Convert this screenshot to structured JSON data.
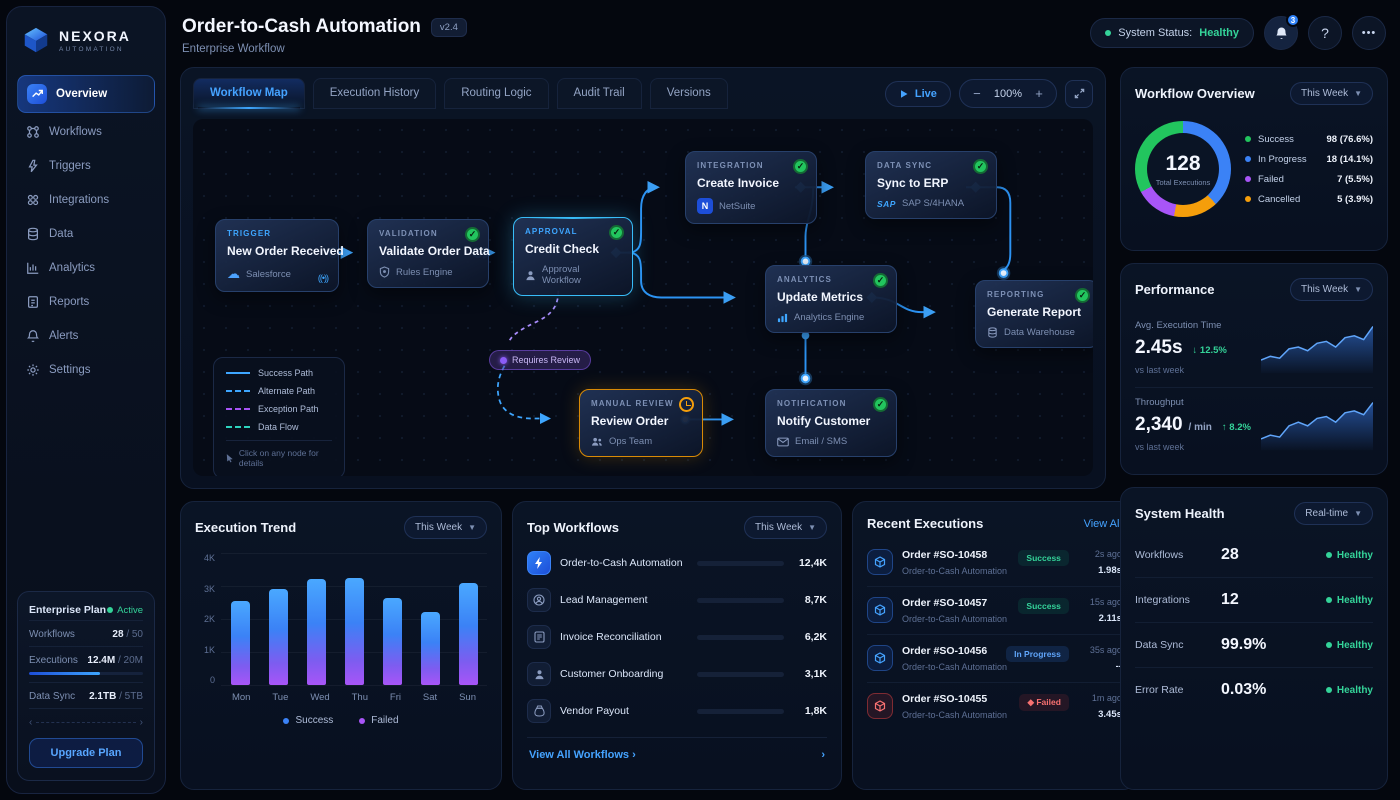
{
  "app": {
    "brand": "NEXORA",
    "brand_sub": "AUTOMATION"
  },
  "sidebar": {
    "items": [
      {
        "label": "Overview"
      },
      {
        "label": "Workflows"
      },
      {
        "label": "Triggers"
      },
      {
        "label": "Integrations"
      },
      {
        "label": "Data"
      },
      {
        "label": "Analytics"
      },
      {
        "label": "Reports"
      },
      {
        "label": "Alerts"
      },
      {
        "label": "Settings"
      }
    ],
    "plan": {
      "name": "Enterprise Plan",
      "status": "Active",
      "rows": [
        {
          "label": "Workflows",
          "value": "28",
          "max": "/ 50"
        },
        {
          "label": "Executions",
          "value": "12.4M",
          "max": "/ 20M"
        },
        {
          "label": "Data Sync",
          "value": "2.1TB",
          "max": "/ 5TB"
        }
      ],
      "button": "Upgrade Plan"
    }
  },
  "header": {
    "title": "Order-to-Cash Automation",
    "version": "v2.4",
    "subtitle": "Enterprise Workflow",
    "system_status_label": "System Status:",
    "system_status_value": "Healthy",
    "notifications_count": "3",
    "help_label": "?",
    "more_label": "•••"
  },
  "workflow_panel": {
    "tabs": [
      {
        "label": "Workflow Map"
      },
      {
        "label": "Execution History"
      },
      {
        "label": "Routing Logic"
      },
      {
        "label": "Audit Trail"
      },
      {
        "label": "Versions"
      }
    ],
    "live_label": "Live",
    "zoom_level": "100%",
    "zoom_out": "−",
    "zoom_in": "+"
  },
  "canvas": {
    "nodes": [
      {
        "type": "TRIGGER",
        "title": "New Order Received",
        "sub": "Salesforce"
      },
      {
        "type": "VALIDATION",
        "title": "Validate Order Data",
        "sub": "Rules Engine"
      },
      {
        "type": "APPROVAL",
        "title": "Credit Check",
        "sub": "Approval Workflow"
      },
      {
        "type": "INTEGRATION",
        "title": "Create Invoice",
        "sub": "NetSuite"
      },
      {
        "type": "DATA SYNC",
        "title": "Sync to ERP",
        "sub": "SAP S/4HANA"
      },
      {
        "type": "ANALYTICS",
        "title": "Update Metrics",
        "sub": "Analytics Engine"
      },
      {
        "type": "REPORTING",
        "title": "Generate Report",
        "sub": "Data Warehouse"
      },
      {
        "type": "MANUAL REVIEW",
        "title": "Review Order",
        "sub": "Ops Team"
      },
      {
        "type": "NOTIFICATION",
        "title": "Notify Customer",
        "sub": "Email / SMS"
      }
    ],
    "edge_label": "Requires Review",
    "legend": {
      "items": [
        {
          "label": "Success Path"
        },
        {
          "label": "Alternate Path"
        },
        {
          "label": "Exception Path"
        },
        {
          "label": "Data Flow"
        }
      ],
      "footer": "Click on any node for details"
    }
  },
  "right": {
    "overview": {
      "title": "Workflow Overview",
      "filter": "This Week",
      "center_value": "128",
      "center_label": "Total Executions",
      "legend": [
        {
          "label": "Success",
          "value": "98 (76.6%)",
          "color": "#22c55e"
        },
        {
          "label": "In Progress",
          "value": "18 (14.1%)",
          "color": "#3b82f6"
        },
        {
          "label": "Failed",
          "value": "7 (5.5%)",
          "color": "#a855f7"
        },
        {
          "label": "Cancelled",
          "value": "5 (3.9%)",
          "color": "#f59e0b"
        }
      ]
    },
    "performance": {
      "title": "Performance",
      "filter": "This Week",
      "metrics": [
        {
          "label": "Avg. Execution Time",
          "value": "2.45s",
          "unit": "",
          "delta": "↓ 12.5%",
          "note": "vs last week"
        },
        {
          "label": "Throughput",
          "value": "2,340",
          "unit": "/ min",
          "delta": "↑ 8.2%",
          "note": "vs last week"
        }
      ]
    },
    "health": {
      "title": "System Health",
      "filter": "Real-time",
      "rows": [
        {
          "label": "Workflows",
          "value": "28",
          "status": "Healthy"
        },
        {
          "label": "Integrations",
          "value": "12",
          "status": "Healthy"
        },
        {
          "label": "Data Sync",
          "value": "99.9%",
          "status": "Healthy"
        },
        {
          "label": "Error Rate",
          "value": "0.03%",
          "status": "Healthy"
        }
      ]
    }
  },
  "bottom": {
    "trend": {
      "title": "Execution Trend",
      "filter": "This Week",
      "legend": [
        "Success",
        "Failed"
      ]
    },
    "top_workflows": {
      "title": "Top Workflows",
      "filter": "This Week",
      "items": [
        {
          "name": "Order-to-Cash Automation",
          "value": "12,4K"
        },
        {
          "name": "Lead Management",
          "value": "8,7K"
        },
        {
          "name": "Invoice Reconciliation",
          "value": "6,2K"
        },
        {
          "name": "Customer Onboarding",
          "value": "3,1K"
        },
        {
          "name": "Vendor Payout",
          "value": "1,8K"
        }
      ],
      "footer": "View All Workflows"
    },
    "recent": {
      "title": "Recent Executions",
      "view_all": "View All",
      "items": [
        {
          "order": "Order #SO-10458",
          "workflow": "Order-to-Cash Automation",
          "status": "Success",
          "time": "2s ago",
          "duration": "1.98s"
        },
        {
          "order": "Order #SO-10457",
          "workflow": "Order-to-Cash Automation",
          "status": "Success",
          "time": "15s ago",
          "duration": "2.11s"
        },
        {
          "order": "Order #SO-10456",
          "workflow": "Order-to-Cash Automation",
          "status": "In Progress",
          "time": "35s ago",
          "duration": "--"
        },
        {
          "order": "Order #SO-10455",
          "workflow": "Order-to-Cash Automation",
          "status": "Failed",
          "time": "1m ago",
          "duration": "3.45s"
        }
      ]
    }
  },
  "chart_data": [
    {
      "id": "workflow-overview-donut",
      "type": "pie",
      "title": "Workflow Overview",
      "labels": [
        "Success",
        "In Progress",
        "Failed",
        "Cancelled"
      ],
      "values": [
        98,
        18,
        7,
        5
      ],
      "percentages": [
        76.6,
        14.1,
        5.5,
        3.9
      ],
      "colors": [
        "#22c55e",
        "#3b82f6",
        "#a855f7",
        "#f59e0b"
      ],
      "center_value": 128,
      "center_label": "Total Executions",
      "legend_position": "right"
    },
    {
      "id": "execution-trend",
      "type": "bar",
      "title": "Execution Trend",
      "categories": [
        "Mon",
        "Tue",
        "Wed",
        "Thu",
        "Fri",
        "Sat",
        "Sun"
      ],
      "values": [
        2550,
        2900,
        3200,
        3250,
        2650,
        2200,
        3100
      ],
      "ylim": [
        0,
        4000
      ],
      "yticks": [
        "0",
        "1K",
        "2K",
        "3K",
        "4K"
      ],
      "legend": [
        "Success",
        "Failed"
      ],
      "grid": true,
      "bar_gradient": [
        "#4aa8ff",
        "#a855f7"
      ]
    },
    {
      "id": "top-workflows",
      "type": "bar",
      "orientation": "horizontal",
      "categories": [
        "Order-to-Cash Automation",
        "Lead Management",
        "Invoice Reconciliation",
        "Customer Onboarding",
        "Vendor Payout"
      ],
      "values": [
        12400,
        8700,
        6200,
        3100,
        1800
      ],
      "xlim": [
        0,
        12400
      ]
    },
    {
      "id": "performance-sparklines",
      "type": "area",
      "series": [
        {
          "name": "Avg. Execution Time",
          "values": [
            42,
            38,
            40,
            30,
            28,
            32,
            24,
            22,
            28,
            18,
            16,
            20,
            6
          ]
        },
        {
          "name": "Throughput",
          "values": [
            44,
            40,
            42,
            30,
            26,
            30,
            22,
            20,
            26,
            16,
            14,
            18,
            5
          ]
        }
      ],
      "color": "#3b82f6"
    }
  ]
}
